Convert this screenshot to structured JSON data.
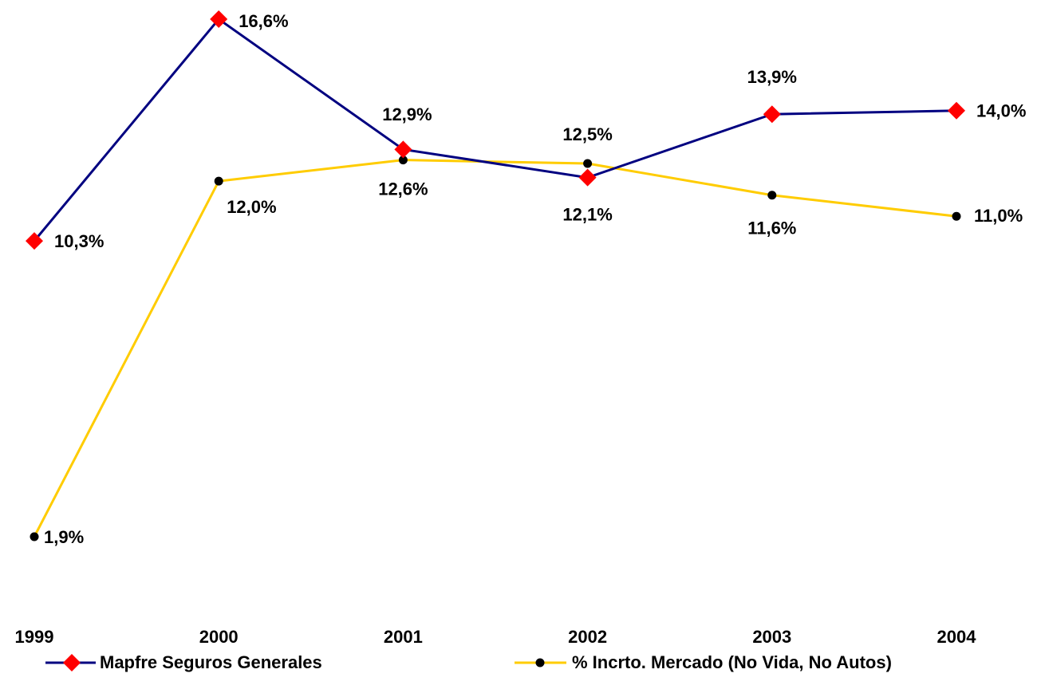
{
  "chart_data": {
    "type": "line",
    "categories": [
      "1999",
      "2000",
      "2001",
      "2002",
      "2003",
      "2004"
    ],
    "series": [
      {
        "name": "Mapfre Seguros Generales",
        "color": "#000080",
        "marker_color": "#ff0000",
        "values": [
          10.3,
          16.6,
          12.9,
          12.1,
          13.9,
          14.0
        ],
        "value_labels": [
          "10,3%",
          "16,6%",
          "12,9%",
          "12,1%",
          "13,9%",
          "14,0%"
        ]
      },
      {
        "name": "% Incrto. Mercado (No Vida, No Autos)",
        "color": "#ffcc00",
        "marker_color": "#000000",
        "values": [
          1.9,
          12.0,
          12.6,
          12.5,
          11.6,
          11.0
        ],
        "value_labels": [
          "1,9%",
          "12,0%",
          "12,6%",
          "12,5%",
          "11,6%",
          "11,0%"
        ]
      }
    ],
    "legend": "bottom"
  }
}
